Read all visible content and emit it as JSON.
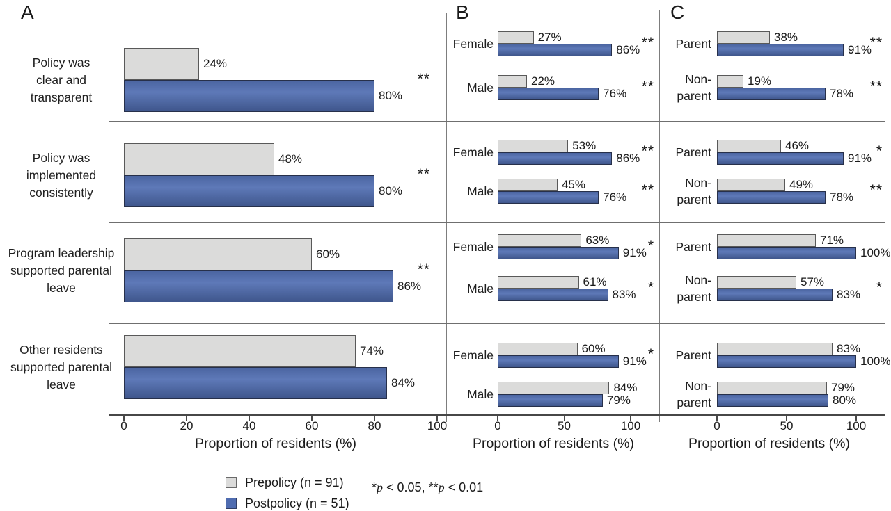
{
  "chart_data": {
    "type": "bar",
    "orientation": "horizontal",
    "value_suffix": "%",
    "series": [
      {
        "name": "Prepolicy (n = 91)",
        "color": "#dbdbda"
      },
      {
        "name": "Postpolicy (n = 51)",
        "color": "#4f6cb0"
      }
    ],
    "categories": [
      "Policy was clear and transparent",
      "Policy was implemented consistently",
      "Program leadership supported parental leave",
      "Other residents supported parental leave"
    ],
    "panels": [
      {
        "label": "A",
        "xlabel": "Proportion of residents (%)",
        "xlim": [
          0,
          100
        ],
        "xticks": [
          0,
          20,
          40,
          60,
          80,
          100
        ],
        "groups": [
          {
            "category_lines": [
              "Policy was",
              "clear and",
              "transparent"
            ],
            "rows": [
              {
                "label_lines": [],
                "prepolicy": 24,
                "postpolicy": 80,
                "sig": "**"
              }
            ]
          },
          {
            "category_lines": [
              "Policy was",
              "implemented",
              "consistently"
            ],
            "rows": [
              {
                "label_lines": [],
                "prepolicy": 48,
                "postpolicy": 80,
                "sig": "**"
              }
            ]
          },
          {
            "category_lines": [
              "Program leadership",
              "supported parental",
              "leave"
            ],
            "rows": [
              {
                "label_lines": [],
                "prepolicy": 60,
                "postpolicy": 86,
                "sig": "**"
              }
            ]
          },
          {
            "category_lines": [
              "Other residents",
              "supported parental",
              "leave"
            ],
            "rows": [
              {
                "label_lines": [],
                "prepolicy": 74,
                "postpolicy": 84,
                "sig": ""
              }
            ]
          }
        ]
      },
      {
        "label": "B",
        "xlabel": "Proportion of residents (%)",
        "xlim": [
          0,
          100
        ],
        "xticks": [
          0,
          50,
          100
        ],
        "groups": [
          {
            "rows": [
              {
                "label_lines": [
                  "Female"
                ],
                "prepolicy": 27,
                "postpolicy": 86,
                "sig": "**"
              },
              {
                "label_lines": [
                  "Male"
                ],
                "prepolicy": 22,
                "postpolicy": 76,
                "sig": "**"
              }
            ]
          },
          {
            "rows": [
              {
                "label_lines": [
                  "Female"
                ],
                "prepolicy": 53,
                "postpolicy": 86,
                "sig": "**"
              },
              {
                "label_lines": [
                  "Male"
                ],
                "prepolicy": 45,
                "postpolicy": 76,
                "sig": "**"
              }
            ]
          },
          {
            "rows": [
              {
                "label_lines": [
                  "Female"
                ],
                "prepolicy": 63,
                "postpolicy": 91,
                "sig": "*"
              },
              {
                "label_lines": [
                  "Male"
                ],
                "prepolicy": 61,
                "postpolicy": 83,
                "sig": "*"
              }
            ]
          },
          {
            "rows": [
              {
                "label_lines": [
                  "Female"
                ],
                "prepolicy": 60,
                "postpolicy": 91,
                "sig": "*"
              },
              {
                "label_lines": [
                  "Male"
                ],
                "prepolicy": 84,
                "postpolicy": 79,
                "sig": ""
              }
            ]
          }
        ]
      },
      {
        "label": "C",
        "xlabel": "Proportion of residents (%)",
        "xlim": [
          0,
          100
        ],
        "xticks": [
          0,
          50,
          100
        ],
        "groups": [
          {
            "rows": [
              {
                "label_lines": [
                  "Parent"
                ],
                "prepolicy": 38,
                "postpolicy": 91,
                "sig": "**"
              },
              {
                "label_lines": [
                  "Non-",
                  "parent"
                ],
                "prepolicy": 19,
                "postpolicy": 78,
                "sig": "**"
              }
            ]
          },
          {
            "rows": [
              {
                "label_lines": [
                  "Parent"
                ],
                "prepolicy": 46,
                "postpolicy": 91,
                "sig": "*"
              },
              {
                "label_lines": [
                  "Non-",
                  "parent"
                ],
                "prepolicy": 49,
                "postpolicy": 78,
                "sig": "**"
              }
            ]
          },
          {
            "rows": [
              {
                "label_lines": [
                  "Parent"
                ],
                "prepolicy": 71,
                "postpolicy": 100,
                "sig": ""
              },
              {
                "label_lines": [
                  "Non-",
                  "parent"
                ],
                "prepolicy": 57,
                "postpolicy": 83,
                "sig": "*"
              }
            ]
          },
          {
            "rows": [
              {
                "label_lines": [
                  "Parent"
                ],
                "prepolicy": 83,
                "postpolicy": 100,
                "sig": ""
              },
              {
                "label_lines": [
                  "Non-",
                  "parent"
                ],
                "prepolicy": 79,
                "postpolicy": 80,
                "sig": ""
              }
            ]
          }
        ]
      }
    ],
    "legend": {
      "position": "bottom",
      "entries": [
        "Prepolicy (n = 91)",
        "Postpolicy (n = 51)"
      ]
    },
    "note_parts": [
      "*",
      "p",
      " < 0.05, ",
      "**",
      "p",
      " < 0.01"
    ]
  },
  "colors": {
    "prepolicy_fill": "#dbdbda",
    "prepolicy_border": "#595959",
    "postpolicy_fill": "#5e79b8",
    "postpolicy_border": "#27304a",
    "text": "#1a1a1a",
    "axis": "#474747",
    "separator": "#6f6f6f",
    "divider": "#7d7d7d"
  }
}
